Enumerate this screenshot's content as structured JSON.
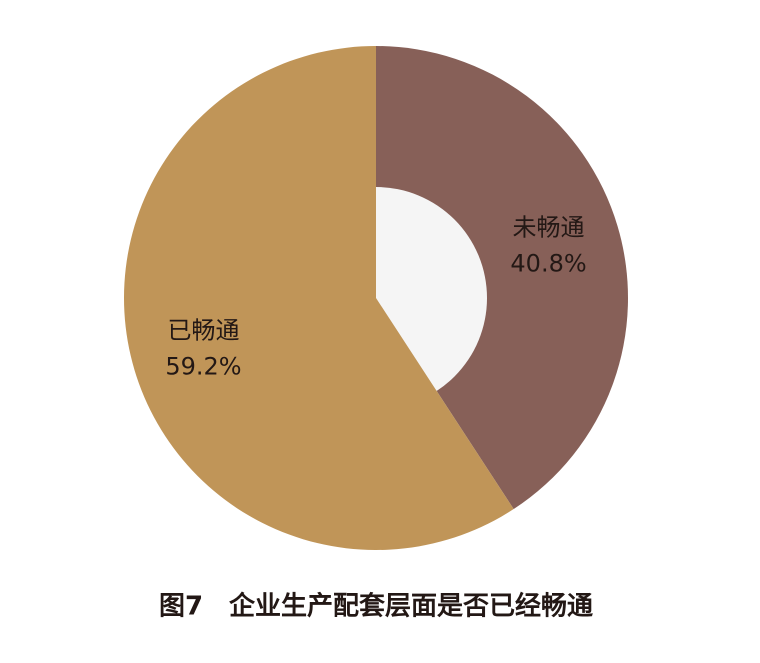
{
  "chart_data": {
    "type": "donut",
    "title": "图7　企业生产配套层面是否已经畅通",
    "categories": [
      "未畅通",
      "已畅通"
    ],
    "values": [
      40.8,
      59.2
    ],
    "value_labels": [
      "40.8%",
      "59.2%"
    ],
    "colors": [
      "#876058",
      "#c09558"
    ]
  }
}
